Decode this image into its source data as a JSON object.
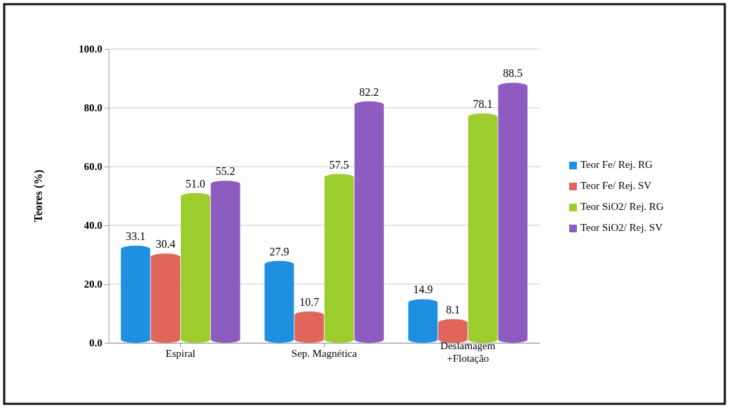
{
  "chart_data": {
    "type": "bar",
    "ylabel": "Teores (%)",
    "categories": [
      "Espiral",
      "Sep. Magnética",
      "Deslamagem +Flotação"
    ],
    "series": [
      {
        "name": "Teor Fe/ Rej. RG",
        "color": "#1f8fe0",
        "values": [
          33.1,
          27.9,
          14.9
        ],
        "value_labels": [
          "33.1",
          "27.9",
          "14.9"
        ]
      },
      {
        "name": "Teor Fe/ Rej. SV",
        "color": "#e0665c",
        "values": [
          30.4,
          10.7,
          8.1
        ],
        "value_labels": [
          "30.4",
          "10.7",
          "8.1"
        ]
      },
      {
        "name": "Teor SiO2/ Rej. RG",
        "color": "#9ccc2e",
        "values": [
          51.0,
          57.5,
          78.1
        ],
        "value_labels": [
          "51.0",
          "57.5",
          "78.1"
        ]
      },
      {
        "name": "Teor SiO2/ Rej. SV",
        "color": "#8e5cc0",
        "values": [
          55.2,
          82.2,
          88.5
        ],
        "value_labels": [
          "55.2",
          "82.2",
          "88.5"
        ]
      }
    ],
    "ylim": [
      0,
      100
    ],
    "yticks": [
      {
        "value": 0,
        "label": "0.0"
      },
      {
        "value": 20,
        "label": "20.0"
      },
      {
        "value": 40,
        "label": "40.0"
      },
      {
        "value": 60,
        "label": "60.0"
      },
      {
        "value": 80,
        "label": "80.0"
      },
      {
        "value": 100,
        "label": "100.0"
      }
    ],
    "grid": "y",
    "legend": "right"
  }
}
